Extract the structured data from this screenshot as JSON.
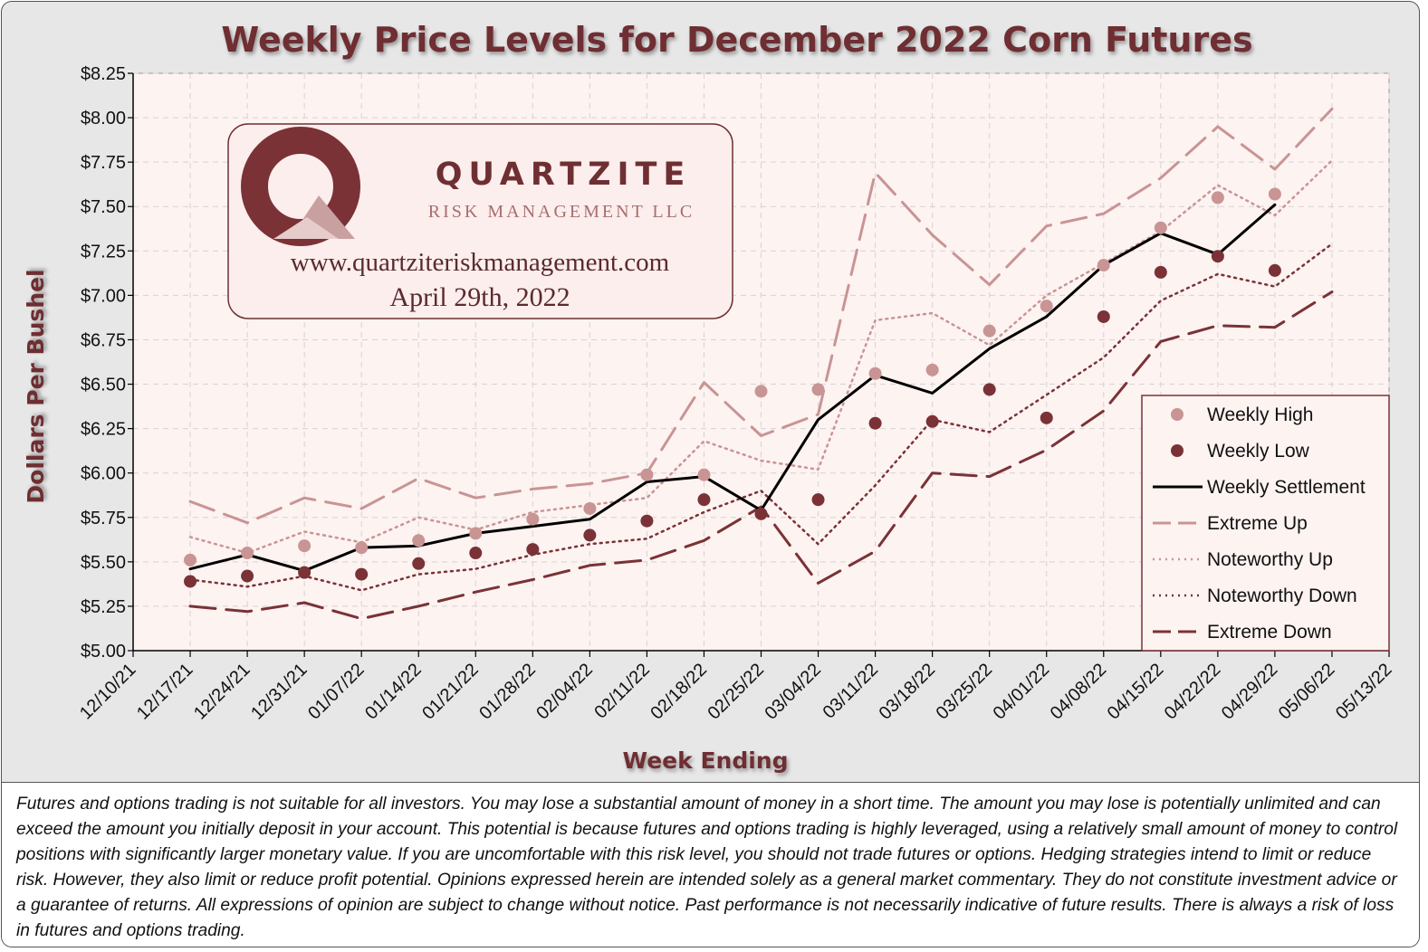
{
  "title": "Weekly Price Levels for December 2022 Corn Futures",
  "colors": {
    "title": "#6e2f33",
    "plot_bg": "#fdf3f1",
    "weekly_high": "#c99494",
    "weekly_low": "#7a3236",
    "settlement": "#000000",
    "extreme_up": "#c99494",
    "noteworthy_up": "#c99494",
    "noteworthy_down": "#7a3236",
    "extreme_down": "#7a3236"
  },
  "watermark": {
    "brand": "QUARTZITE",
    "subtitle": "RISK MANAGEMENT LLC",
    "url": "www.quartziteriskmanagement.com",
    "date": "April 29th, 2022",
    "logo_icon": "quartzite-logo-icon"
  },
  "chart_data": {
    "type": "line",
    "title": "Weekly Price Levels for December 2022 Corn Futures",
    "xlabel": "Week Ending",
    "ylabel": "Dollars Per Bushel",
    "ylim": [
      5.0,
      8.25
    ],
    "yticks": [
      "$5.00",
      "$5.25",
      "$5.50",
      "$5.75",
      "$6.00",
      "$6.25",
      "$6.50",
      "$6.75",
      "$7.00",
      "$7.25",
      "$7.50",
      "$7.75",
      "$8.00",
      "$8.25"
    ],
    "categories": [
      "12/10/21",
      "12/17/21",
      "12/24/21",
      "12/31/21",
      "01/07/22",
      "01/14/22",
      "01/21/22",
      "01/28/22",
      "02/04/22",
      "02/11/22",
      "02/18/22",
      "02/25/22",
      "03/04/22",
      "03/11/22",
      "03/18/22",
      "03/25/22",
      "04/01/22",
      "04/08/22",
      "04/15/22",
      "04/22/22",
      "04/29/22",
      "05/06/22",
      "05/13/22"
    ],
    "grid": true,
    "legend_position": "bottom-right",
    "series": [
      {
        "name": "Weekly High",
        "style": "marker-light",
        "values": [
          null,
          5.51,
          5.55,
          5.59,
          5.58,
          5.62,
          5.66,
          5.74,
          5.8,
          5.99,
          5.99,
          6.46,
          6.47,
          6.56,
          6.58,
          6.8,
          6.94,
          7.17,
          7.38,
          7.55,
          7.57,
          null,
          null
        ]
      },
      {
        "name": "Weekly Low",
        "style": "marker-dark",
        "values": [
          null,
          5.39,
          5.42,
          5.44,
          5.43,
          5.49,
          5.55,
          5.57,
          5.65,
          5.73,
          5.85,
          5.77,
          5.85,
          6.28,
          6.29,
          6.47,
          6.31,
          6.88,
          7.13,
          7.22,
          7.14,
          null,
          null
        ]
      },
      {
        "name": "Weekly Settlement",
        "style": "solid",
        "values": [
          null,
          5.46,
          5.54,
          5.45,
          5.58,
          5.59,
          5.66,
          5.7,
          5.74,
          5.95,
          5.98,
          5.79,
          6.3,
          6.55,
          6.45,
          6.7,
          6.88,
          7.17,
          7.35,
          7.23,
          7.51,
          null,
          null
        ]
      },
      {
        "name": "Extreme Up",
        "style": "dash-light",
        "values": [
          null,
          5.84,
          5.72,
          5.86,
          5.8,
          5.97,
          5.86,
          5.91,
          5.94,
          6.0,
          6.51,
          6.21,
          6.33,
          7.69,
          7.34,
          7.06,
          7.39,
          7.46,
          7.66,
          7.95,
          7.71,
          8.05,
          null
        ]
      },
      {
        "name": "Noteworthy Up",
        "style": "dot-light",
        "values": [
          null,
          5.64,
          5.55,
          5.67,
          5.61,
          5.75,
          5.68,
          5.78,
          5.82,
          5.86,
          6.18,
          6.07,
          6.02,
          6.86,
          6.9,
          6.72,
          7.0,
          7.18,
          7.36,
          7.62,
          7.45,
          7.76,
          null
        ]
      },
      {
        "name": "Noteworthy Down",
        "style": "dot-dark",
        "values": [
          null,
          5.4,
          5.36,
          5.42,
          5.34,
          5.43,
          5.46,
          5.54,
          5.6,
          5.63,
          5.78,
          5.9,
          5.6,
          5.93,
          6.3,
          6.23,
          6.44,
          6.65,
          6.97,
          7.12,
          7.05,
          7.29,
          null
        ]
      },
      {
        "name": "Extreme Down",
        "style": "dash-dark",
        "values": [
          null,
          5.25,
          5.22,
          5.27,
          5.18,
          5.25,
          5.33,
          5.4,
          5.48,
          5.51,
          5.62,
          5.81,
          5.38,
          5.56,
          6.0,
          5.98,
          6.13,
          6.35,
          6.74,
          6.83,
          6.82,
          7.02,
          null
        ]
      }
    ]
  },
  "disclaimer": "Futures and options trading is not suitable for all investors. You may lose a substantial amount of money in a short time. The amount you may lose is potentially unlimited and can exceed the amount you initially deposit in your account. This potential is because futures and options trading is highly leveraged, using a relatively small amount of money to control positions with significantly larger monetary value. If you are uncomfortable with this risk level, you should not trade futures or options. Hedging strategies intend to limit or reduce risk. However, they also limit or reduce profit potential. Opinions expressed herein are intended solely as a general market commentary. They do not constitute investment advice or a guarantee of returns. All expressions of opinion are subject to change without notice. Past performance is not necessarily indicative of future results. There is always a risk of loss in futures and options trading."
}
